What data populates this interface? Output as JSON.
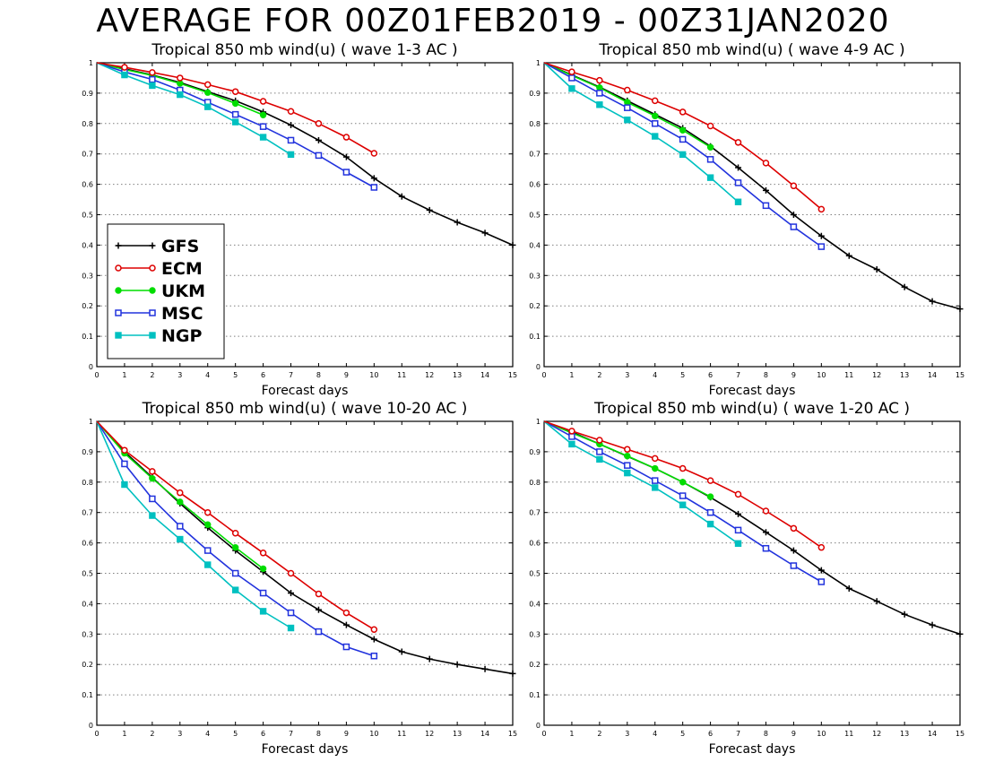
{
  "page": {
    "title": "AVERAGE FOR 00Z01FEB2019 - 00Z31JAN2020"
  },
  "legend": {
    "placement": "left-middle of top-left panel",
    "entries": [
      {
        "name": "GFS",
        "color": "#000000",
        "marker": "plus"
      },
      {
        "name": "ECM",
        "color": "#dd0000",
        "marker": "open-circle"
      },
      {
        "name": "UKM",
        "color": "#00dd00",
        "marker": "filled-circle"
      },
      {
        "name": "MSC",
        "color": "#2233dd",
        "marker": "open-square"
      },
      {
        "name": "NGP",
        "color": "#00c0c0",
        "marker": "filled-square"
      }
    ]
  },
  "chart_data": [
    {
      "type": "line",
      "title": "Tropical 850 mb wind(u) ( wave 1-3 AC )",
      "xlabel": "Forecast days",
      "ylabel": "",
      "xlim": [
        0,
        15
      ],
      "ylim": [
        0,
        1
      ],
      "xticks": [
        "0",
        "1",
        "2",
        "3",
        "4",
        "5",
        "6",
        "7",
        "8",
        "9",
        "10",
        "11",
        "12",
        "13",
        "14",
        "15"
      ],
      "yticks": [
        "0",
        "0.1",
        "0.2",
        "0.3",
        "0.4",
        "0.5",
        "0.6",
        "0.7",
        "0.8",
        "0.9",
        "1"
      ],
      "grid": "horizontal dotted",
      "series": [
        {
          "name": "GFS",
          "x": [
            0,
            1,
            2,
            3,
            4,
            5,
            6,
            7,
            8,
            9,
            10,
            11,
            12,
            13,
            14,
            15
          ],
          "values": [
            1,
            0.98,
            0.96,
            0.935,
            0.905,
            0.875,
            0.838,
            0.795,
            0.745,
            0.69,
            0.62,
            0.56,
            0.515,
            0.475,
            0.44,
            0.4
          ]
        },
        {
          "name": "ECM",
          "x": [
            0,
            1,
            2,
            3,
            4,
            5,
            6,
            7,
            8,
            9,
            10
          ],
          "values": [
            1,
            0.985,
            0.968,
            0.95,
            0.928,
            0.905,
            0.873,
            0.84,
            0.8,
            0.755,
            0.702
          ]
        },
        {
          "name": "UKM",
          "x": [
            0,
            1,
            2,
            3,
            4,
            5,
            6
          ],
          "values": [
            1,
            0.978,
            0.958,
            0.932,
            0.902,
            0.866,
            0.828
          ]
        },
        {
          "name": "MSC",
          "x": [
            0,
            1,
            2,
            3,
            4,
            5,
            6,
            7,
            8,
            9,
            10
          ],
          "values": [
            1,
            0.97,
            0.945,
            0.91,
            0.87,
            0.83,
            0.79,
            0.745,
            0.695,
            0.64,
            0.59
          ]
        },
        {
          "name": "NGP",
          "x": [
            0,
            1,
            2,
            3,
            4,
            5,
            6,
            7
          ],
          "values": [
            1,
            0.96,
            0.925,
            0.895,
            0.855,
            0.805,
            0.755,
            0.698
          ]
        }
      ]
    },
    {
      "type": "line",
      "title": "Tropical 850 mb wind(u) ( wave 4-9 AC )",
      "xlabel": "Forecast days",
      "ylabel": "",
      "xlim": [
        0,
        15
      ],
      "ylim": [
        0,
        1
      ],
      "xticks": [
        "0",
        "1",
        "2",
        "3",
        "4",
        "5",
        "6",
        "7",
        "8",
        "9",
        "10",
        "11",
        "12",
        "13",
        "14",
        "15"
      ],
      "yticks": [
        "0",
        "0.1",
        "0.2",
        "0.3",
        "0.4",
        "0.5",
        "0.6",
        "0.7",
        "0.8",
        "0.9",
        "1"
      ],
      "grid": "horizontal dotted",
      "series": [
        {
          "name": "GFS",
          "x": [
            0,
            1,
            2,
            3,
            4,
            5,
            6,
            7,
            8,
            9,
            10,
            11,
            12,
            13,
            14,
            15
          ],
          "values": [
            1,
            0.96,
            0.92,
            0.875,
            0.83,
            0.785,
            0.725,
            0.655,
            0.58,
            0.5,
            0.43,
            0.365,
            0.32,
            0.262,
            0.215,
            0.19
          ]
        },
        {
          "name": "ECM",
          "x": [
            0,
            1,
            2,
            3,
            4,
            5,
            6,
            7,
            8,
            9,
            10
          ],
          "values": [
            1,
            0.97,
            0.942,
            0.91,
            0.875,
            0.838,
            0.792,
            0.738,
            0.67,
            0.595,
            0.518
          ]
        },
        {
          "name": "UKM",
          "x": [
            0,
            1,
            2,
            3,
            4,
            5,
            6
          ],
          "values": [
            1,
            0.958,
            0.918,
            0.87,
            0.825,
            0.778,
            0.722
          ]
        },
        {
          "name": "MSC",
          "x": [
            0,
            1,
            2,
            3,
            4,
            5,
            6,
            7,
            8,
            9,
            10
          ],
          "values": [
            1,
            0.95,
            0.9,
            0.852,
            0.8,
            0.748,
            0.682,
            0.605,
            0.53,
            0.46,
            0.395
          ]
        },
        {
          "name": "NGP",
          "x": [
            0,
            1,
            2,
            3,
            4,
            5,
            6,
            7
          ],
          "values": [
            1,
            0.915,
            0.862,
            0.812,
            0.758,
            0.698,
            0.622,
            0.542
          ]
        }
      ]
    },
    {
      "type": "line",
      "title": "Tropical 850 mb wind(u) ( wave 10-20 AC )",
      "xlabel": "Forecast days",
      "ylabel": "",
      "xlim": [
        0,
        15
      ],
      "ylim": [
        0,
        1
      ],
      "xticks": [
        "0",
        "1",
        "2",
        "3",
        "4",
        "5",
        "6",
        "7",
        "8",
        "9",
        "10",
        "11",
        "12",
        "13",
        "14",
        "15"
      ],
      "yticks": [
        "0",
        "0.1",
        "0.2",
        "0.3",
        "0.4",
        "0.5",
        "0.6",
        "0.7",
        "0.8",
        "0.9",
        "1"
      ],
      "grid": "horizontal dotted",
      "series": [
        {
          "name": "GFS",
          "x": [
            0,
            1,
            2,
            3,
            4,
            5,
            6,
            7,
            8,
            9,
            10,
            11,
            12,
            13,
            14,
            15
          ],
          "values": [
            1,
            0.9,
            0.815,
            0.73,
            0.65,
            0.575,
            0.505,
            0.435,
            0.38,
            0.33,
            0.283,
            0.242,
            0.218,
            0.2,
            0.185,
            0.17
          ]
        },
        {
          "name": "ECM",
          "x": [
            0,
            1,
            2,
            3,
            4,
            5,
            6,
            7,
            8,
            9,
            10
          ],
          "values": [
            1,
            0.905,
            0.835,
            0.765,
            0.7,
            0.632,
            0.567,
            0.5,
            0.432,
            0.37,
            0.315
          ]
        },
        {
          "name": "UKM",
          "x": [
            0,
            1,
            2,
            3,
            4,
            5,
            6
          ],
          "values": [
            1,
            0.895,
            0.812,
            0.735,
            0.66,
            0.585,
            0.515
          ]
        },
        {
          "name": "MSC",
          "x": [
            0,
            1,
            2,
            3,
            4,
            5,
            6,
            7,
            8,
            9,
            10
          ],
          "values": [
            1,
            0.86,
            0.745,
            0.655,
            0.575,
            0.5,
            0.435,
            0.37,
            0.308,
            0.258,
            0.228
          ]
        },
        {
          "name": "NGP",
          "x": [
            0,
            1,
            2,
            3,
            4,
            5,
            6,
            7
          ],
          "values": [
            1,
            0.792,
            0.69,
            0.612,
            0.528,
            0.445,
            0.375,
            0.32
          ]
        }
      ]
    },
    {
      "type": "line",
      "title": "Tropical 850 mb wind(u) ( wave 1-20 AC )",
      "xlabel": "Forecast days",
      "ylabel": "",
      "xlim": [
        0,
        15
      ],
      "ylim": [
        0,
        1
      ],
      "xticks": [
        "0",
        "1",
        "2",
        "3",
        "4",
        "5",
        "6",
        "7",
        "8",
        "9",
        "10",
        "11",
        "12",
        "13",
        "14",
        "15"
      ],
      "yticks": [
        "0",
        "0.1",
        "0.2",
        "0.3",
        "0.4",
        "0.5",
        "0.6",
        "0.7",
        "0.8",
        "0.9",
        "1"
      ],
      "grid": "horizontal dotted",
      "series": [
        {
          "name": "GFS",
          "x": [
            0,
            1,
            2,
            3,
            4,
            5,
            6,
            7,
            8,
            9,
            10,
            11,
            12,
            13,
            14,
            15
          ],
          "values": [
            1,
            0.965,
            0.925,
            0.885,
            0.845,
            0.8,
            0.75,
            0.695,
            0.635,
            0.575,
            0.51,
            0.45,
            0.408,
            0.365,
            0.33,
            0.3
          ]
        },
        {
          "name": "ECM",
          "x": [
            0,
            1,
            2,
            3,
            4,
            5,
            6,
            7,
            8,
            9,
            10
          ],
          "values": [
            1,
            0.968,
            0.938,
            0.908,
            0.878,
            0.845,
            0.805,
            0.76,
            0.705,
            0.648,
            0.585
          ]
        },
        {
          "name": "UKM",
          "x": [
            0,
            1,
            2,
            3,
            4,
            5,
            6
          ],
          "values": [
            1,
            0.962,
            0.925,
            0.886,
            0.845,
            0.8,
            0.752
          ]
        },
        {
          "name": "MSC",
          "x": [
            0,
            1,
            2,
            3,
            4,
            5,
            6,
            7,
            8,
            9,
            10
          ],
          "values": [
            1,
            0.95,
            0.9,
            0.855,
            0.805,
            0.755,
            0.7,
            0.642,
            0.582,
            0.525,
            0.472
          ]
        },
        {
          "name": "NGP",
          "x": [
            0,
            1,
            2,
            3,
            4,
            5,
            6,
            7
          ],
          "values": [
            1,
            0.925,
            0.875,
            0.83,
            0.782,
            0.725,
            0.662,
            0.598
          ]
        }
      ]
    }
  ]
}
